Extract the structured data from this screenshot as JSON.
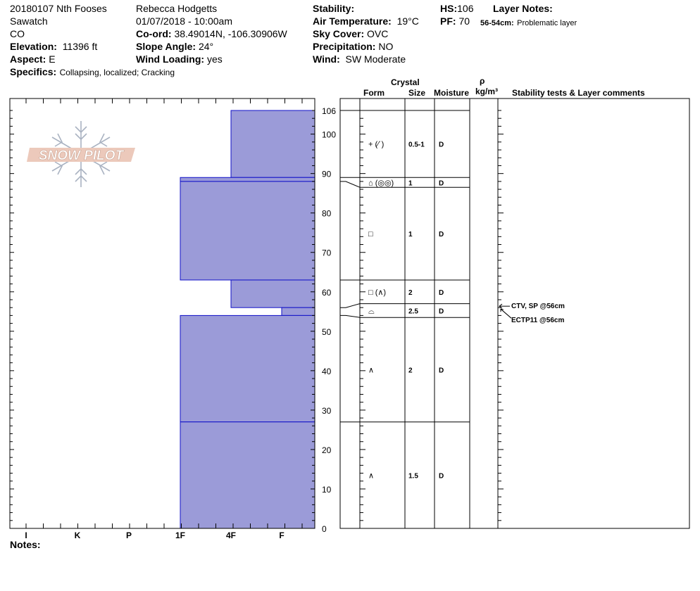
{
  "header": {
    "pit_name": "20180107 Nth Fooses",
    "range": "Sawatch",
    "state": "CO",
    "elevation_label": "Elevation:",
    "elevation_value": "11396 ft",
    "aspect_label": "Aspect:",
    "aspect_value": "E",
    "specifics_label": "Specifics:",
    "specifics_value": "Collapsing, localized;  Cracking",
    "observer": "Rebecca Hodgetts",
    "datetime": "01/07/2018 - 10:00am",
    "coord_label": "Co-ord:",
    "coord_value": "38.49014N, -106.30906W",
    "slope_label": "Slope Angle:",
    "slope_value": "24°",
    "wind_loading_label": "Wind Loading:",
    "wind_loading_value": "yes",
    "stability_label": "Stability:",
    "stability_value": "",
    "air_temp_label": "Air Temperature:",
    "air_temp_value": "19°C",
    "sky_label": "Sky Cover:",
    "sky_value": "OVC",
    "precip_label": "Precipitation:",
    "precip_value": "NO",
    "wind_label": "Wind:",
    "wind_value": "SW Moderate",
    "hs_label": "HS:",
    "hs_value": "106",
    "pf_label": "PF:",
    "pf_value": "70",
    "layer_notes_label": "Layer Notes:",
    "layer_notes_depth": "56-54cm:",
    "layer_notes_text": "Problematic layer"
  },
  "logo": {
    "text": "SNOW PILOT"
  },
  "table_headers": {
    "crystal": "Crystal",
    "form": "Form",
    "size": "Size",
    "moisture": "Moisture",
    "rho": "ρ",
    "density_unit": "kg/m³",
    "comments": "Stability tests & Layer comments"
  },
  "hardness_axis": [
    "I",
    "K",
    "P",
    "1F",
    "4F",
    "F"
  ],
  "depth_ticks": [
    "106",
    "100",
    "90",
    "80",
    "70",
    "60",
    "50",
    "40",
    "30",
    "20",
    "10",
    "0"
  ],
  "notes_label": "Notes:",
  "chart_data": {
    "type": "snow-profile",
    "hs_cm": 106,
    "y_range_cm": [
      0,
      106
    ],
    "hardness_scale": [
      "I",
      "K",
      "P",
      "1F",
      "4F",
      "F"
    ],
    "layers": [
      {
        "top": 106,
        "bottom": 89,
        "hardness": "4F-F"
      },
      {
        "top": 89,
        "bottom": 88,
        "hardness": "1F-F"
      },
      {
        "top": 88,
        "bottom": 63,
        "hardness": "1F-F"
      },
      {
        "top": 63,
        "bottom": 56,
        "hardness": "4F-F"
      },
      {
        "top": 56,
        "bottom": 54,
        "hardness": "F"
      },
      {
        "top": 54,
        "bottom": 27,
        "hardness": "1F-F"
      },
      {
        "top": 27,
        "bottom": 0,
        "hardness": "1F-F"
      }
    ],
    "crystal_rows": [
      {
        "top": 106,
        "bottom": 89,
        "form": "+ (⁄˙)",
        "size": "0.5-1",
        "moisture": "D"
      },
      {
        "top": 89,
        "bottom": 86.5,
        "form": "⌂ (◎◎)",
        "size": "1",
        "moisture": "D"
      },
      {
        "top": 86.5,
        "bottom": 63,
        "form": "□",
        "size": "1",
        "moisture": "D"
      },
      {
        "top": 63,
        "bottom": 57,
        "form": "□ (∧)",
        "size": "2",
        "moisture": "D"
      },
      {
        "top": 57,
        "bottom": 53.5,
        "form": "⌓",
        "size": "2.5",
        "moisture": "D"
      },
      {
        "top": 53.5,
        "bottom": 27,
        "form": "∧",
        "size": "2",
        "moisture": "D"
      },
      {
        "top": 27,
        "bottom": 0,
        "form": "∧",
        "size": "1.5",
        "moisture": "D"
      }
    ],
    "stability_tests": [
      {
        "text": "CTV, SP @56cm",
        "depth": 56
      },
      {
        "text": "ECTP11 @56cm",
        "depth": 56
      }
    ]
  }
}
